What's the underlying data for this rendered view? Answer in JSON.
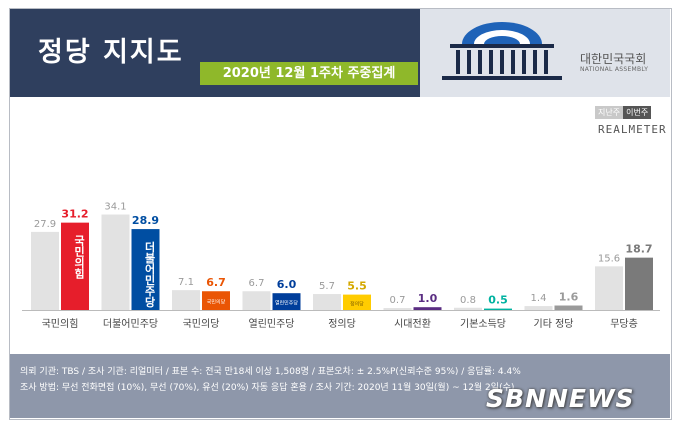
{
  "header": {
    "title": "정당 지지도",
    "subtitle": "2020년 12월 1주차 주중집계",
    "assembly_ko": "대한민국국회",
    "assembly_en": "NATIONAL ASSEMBLY"
  },
  "legend": {
    "prev": "지난주",
    "curr": "이번주",
    "brand": "REALMETER"
  },
  "footer": {
    "line1": "의뢰 기관: TBS / 조사 기관: 리얼미터 / 표본 수: 전국 만18세 이상 1,508명 / 표본오차: ± 2.5%P(신뢰수준 95%) / 응답률: 4.4%",
    "line2": "조사 방법: 무선 전화면접 (10%), 무선 (70%), 유선 (20%) 자동 응답 혼용 / 조사 기간: 2020년 11월 30일(월) ~ 12월 2일(수)",
    "watermark": "SBNNEWS"
  },
  "chart_data": {
    "type": "bar",
    "categories": [
      "국민의힘",
      "더불어민주당",
      "국민의당",
      "열린민주당",
      "정의당",
      "시대전환",
      "기본소득당",
      "기타 정당",
      "무당층"
    ],
    "series": [
      {
        "name": "지난주",
        "values": [
          27.9,
          34.1,
          7.1,
          6.7,
          5.7,
          0.7,
          0.8,
          1.4,
          15.6
        ]
      },
      {
        "name": "이번주",
        "values": [
          31.2,
          28.9,
          6.7,
          6.0,
          5.5,
          1.0,
          0.5,
          1.6,
          18.7
        ]
      }
    ],
    "party_colors": [
      "#e61e2b",
      "#004ea2",
      "#ea5504",
      "#003e9b",
      "#ffcc00",
      "#5a2d82",
      "#00b2a0",
      "#9a9a9a",
      "#7a7a7a"
    ],
    "logos": [
      "국민의힘",
      "더불어민주당",
      "국민의당",
      "열린민주당",
      "정의당",
      "",
      "",
      "",
      ""
    ],
    "prev_color": "#e2e2e2",
    "ylim": [
      0,
      40
    ],
    "grid": false,
    "legend_position": "top-right"
  }
}
